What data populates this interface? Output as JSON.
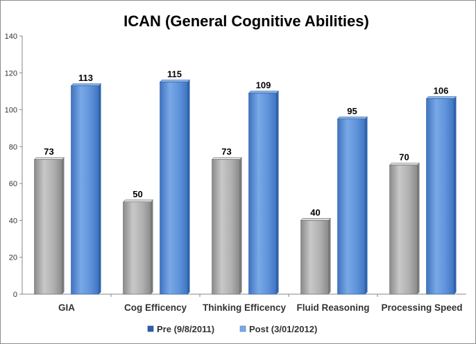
{
  "chart_data": {
    "type": "bar",
    "title": "ICAN (General Cognitive Abilities)",
    "xlabel": "",
    "ylabel": "",
    "categories": [
      "GIA",
      "Cog Efficency",
      "Thinking Efficency",
      "Fluid Reasoning",
      "Processing Speed"
    ],
    "series": [
      {
        "name": "Pre (9/8/2011)",
        "values": [
          73,
          50,
          73,
          40,
          70
        ],
        "color": "#a6a6a6"
      },
      {
        "name": "Post (3/01/2012)",
        "values": [
          113,
          115,
          109,
          95,
          106
        ],
        "color": "#558ed5"
      }
    ],
    "ylim": [
      0,
      140
    ],
    "yticks": [
      0,
      20,
      40,
      60,
      80,
      100,
      120,
      140
    ],
    "grid": false,
    "legend_position": "bottom",
    "data_labels": true
  }
}
